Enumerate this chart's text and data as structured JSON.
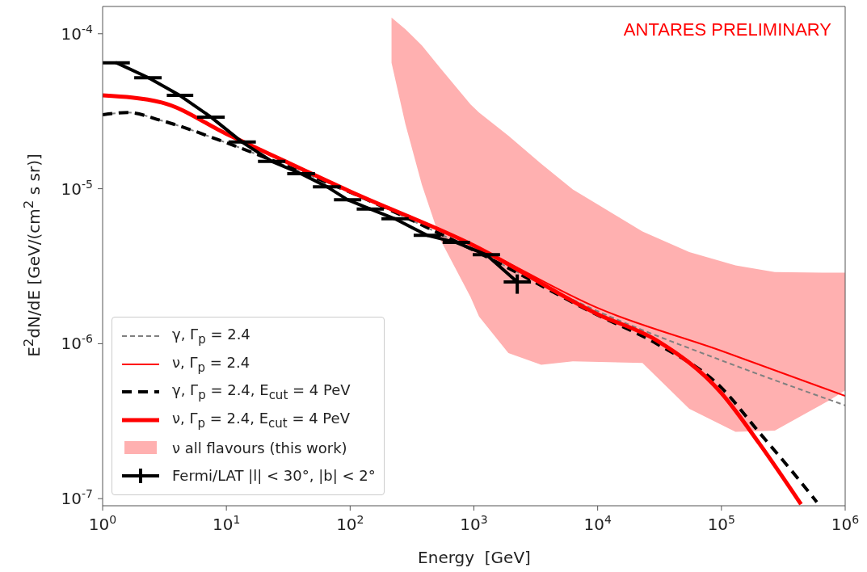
{
  "chart_data": {
    "type": "line",
    "xlabel": "Energy  [GeV]",
    "ylabel": "E$^{2}$dN/dE [GeV/(cm$^{2}$ s sr)]",
    "log": "xy",
    "grid": false,
    "legend": "bottom left",
    "xlim": [
      1,
      1000000
    ],
    "xticks": [
      {
        "value": 1,
        "label": "10$^{0}$"
      },
      {
        "value": 10,
        "label": "10$^{1}$"
      },
      {
        "value": 100,
        "label": "10$^{2}$"
      },
      {
        "value": 1000,
        "label": "10$^{3}$"
      },
      {
        "value": 10000,
        "label": "10$^{4}$"
      },
      {
        "value": 100000,
        "label": "10$^{5}$"
      },
      {
        "value": 1000000,
        "label": "10$^{6}$"
      }
    ],
    "ylim": [
      9e-08,
      0.00015
    ],
    "yticks": [
      {
        "value": 1e-07,
        "label": "10$^{-7}$"
      },
      {
        "value": 1e-06,
        "label": "10$^{-6}$"
      },
      {
        "value": 1e-05,
        "label": "10$^{-5}$"
      },
      {
        "value": 0.0001,
        "label": "10$^{-4}$"
      }
    ],
    "annotations": [
      "ANTARES PRELIMINARY"
    ],
    "series": [
      {
        "name": "γ, Γ$_{p}$ = 2.4",
        "line_style": "dashed",
        "color": "#808080",
        "x": [
          1,
          1.6,
          3,
          10,
          30,
          100,
          1000,
          10000,
          100000,
          1000000
        ],
        "values": [
          3e-05,
          3.1e-05,
          2.75e-05,
          1.98e-05,
          1.41e-05,
          9.5e-06,
          4e-06,
          1.62e-06,
          7.8e-07,
          4e-07
        ]
      },
      {
        "name": "ν, Γ$_{p}$ = 2.4",
        "line_style": "solid",
        "color": "#ff0000",
        "x": [
          1,
          3,
          10,
          30,
          100,
          1000,
          10000,
          100000,
          1000000
        ],
        "values": [
          4e-05,
          3.6e-05,
          2.26e-05,
          1.5e-05,
          9.6e-06,
          4.3e-06,
          1.7e-06,
          9e-07,
          4.6e-07
        ]
      },
      {
        "name": "γ, Γ$_{p}$ = 2.4, E$_{cut}$ = 4 PeV",
        "line_style": "dashed",
        "color": "#000000",
        "x": [
          1,
          1.6,
          3,
          10,
          30,
          100,
          1000,
          10000,
          30000,
          100000,
          200000,
          400000,
          590000
        ],
        "values": [
          3e-05,
          3.1e-05,
          2.75e-05,
          1.98e-05,
          1.41e-05,
          9.5e-06,
          4e-06,
          1.53e-06,
          1e-06,
          5.2e-07,
          2.7e-07,
          1.4e-07,
          9.5e-08
        ]
      },
      {
        "name": "ν, Γ$_{p}$ = 2.4, E$_{cut}$ = 4 PeV",
        "line_style": "solid",
        "color": "#ff0000",
        "x": [
          1,
          3,
          10,
          30,
          100,
          1000,
          10000,
          30000,
          100000,
          200000,
          440000
        ],
        "values": [
          4e-05,
          3.6e-05,
          2.26e-05,
          1.5e-05,
          9.6e-06,
          4.3e-06,
          1.55e-06,
          1.05e-06,
          4.8e-07,
          2.3e-07,
          9.2e-08
        ]
      },
      {
        "name": "ν all flavours (this work)",
        "type": "area",
        "color": "#ffb0b0",
        "x": [
          216,
          280,
          380,
          535,
          940,
          1100,
          1900,
          3500,
          6300,
          23000,
          55000,
          130000,
          270000,
          740000,
          1000000
        ],
        "values": [
          null,
          null,
          null,
          null,
          null,
          null,
          null,
          null,
          null,
          null,
          null,
          null,
          null,
          null,
          null
        ],
        "upper": [
          0.000127,
          0.000107,
          8.4e-05,
          6e-05,
          3.5e-05,
          3.1e-05,
          2.2e-05,
          1.45e-05,
          9.9e-06,
          5.3e-06,
          3.9e-06,
          3.2e-06,
          2.9e-06,
          2.87e-06,
          2.87e-06
        ],
        "lower": [
          6.5e-05,
          2.6e-05,
          1.06e-05,
          4.7e-06,
          2e-06,
          1.5e-06,
          8.7e-07,
          7.3e-07,
          7.7e-07,
          7.5e-07,
          3.8e-07,
          2.7e-07,
          2.75e-07,
          4.3e-07,
          5e-07
        ]
      },
      {
        "name": "Fermi/LAT |l| < 30°, |b| < 2°",
        "line_style": "solid",
        "color": "#000000",
        "x": [
          1.29,
          2.35,
          4.2,
          7.5,
          13.4,
          23.4,
          40,
          65,
          95,
          145,
          230,
          420,
          720,
          1260,
          2240
        ],
        "values": [
          6.5e-05,
          5.2e-05,
          4e-05,
          2.9e-05,
          2e-05,
          1.5e-05,
          1.25e-05,
          1.03e-05,
          8.5e-06,
          7.4e-06,
          6.4e-06,
          5e-06,
          4.5e-06,
          3.75e-06,
          2.5e-06
        ],
        "xerrors": [
          [
            1.0,
            1.66
          ],
          [
            1.8,
            3.0
          ],
          [
            3.3,
            5.4
          ],
          [
            5.8,
            9.7
          ],
          [
            10.4,
            17.3
          ],
          [
            18,
            30
          ],
          [
            31,
            52
          ],
          [
            50,
            84
          ],
          [
            74,
            123
          ],
          [
            113,
            187
          ],
          [
            179,
            297
          ],
          [
            326,
            542
          ],
          [
            559,
            929
          ],
          [
            978,
            1626
          ],
          [
            1740,
            2890
          ]
        ],
        "errors": [
          null,
          null,
          null,
          null,
          null,
          null,
          null,
          null,
          null,
          null,
          null,
          null,
          null,
          null,
          [
            2.1e-06,
            2.8e-06
          ]
        ]
      }
    ]
  }
}
